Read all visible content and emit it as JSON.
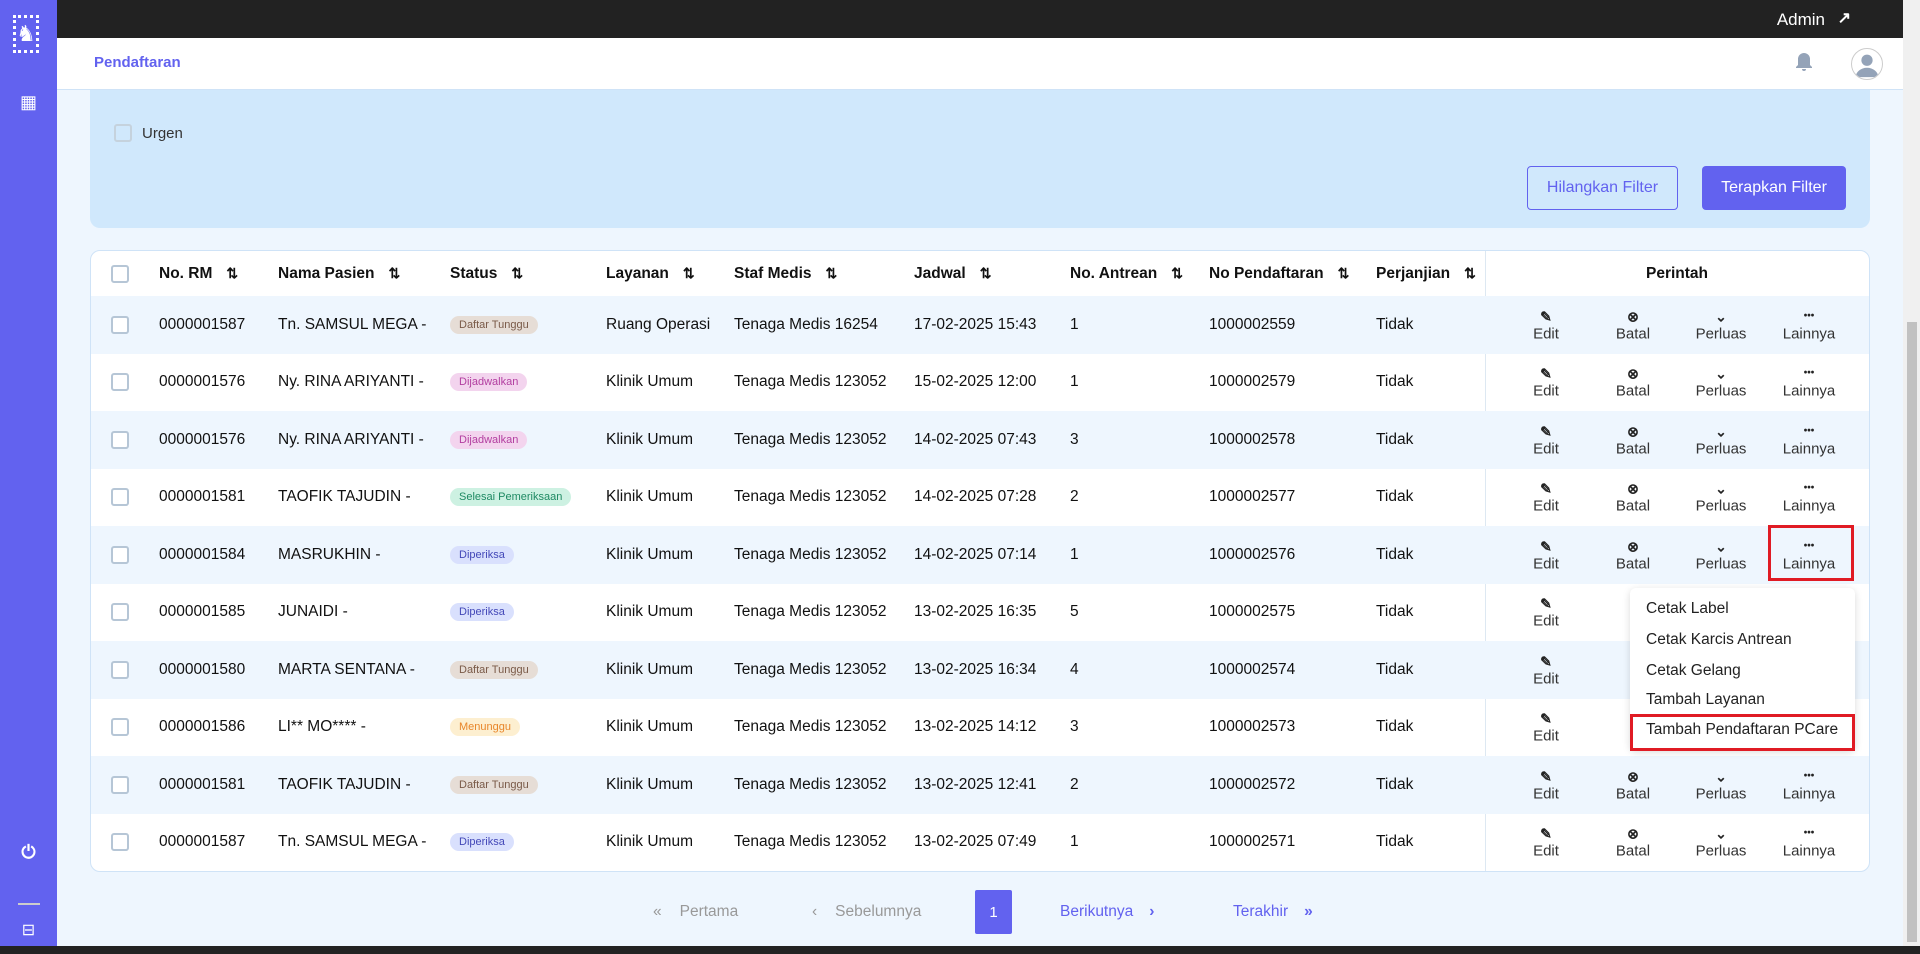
{
  "topbar": {
    "user": "Admin"
  },
  "header": {
    "title": "Pendaftaran"
  },
  "filter": {
    "urgent_label": "Urgen",
    "clear_label": "Hilangkan Filter",
    "apply_label": "Terapkan Filter"
  },
  "table": {
    "columns": [
      "No. RM",
      "Nama Pasien",
      "Status",
      "Layanan",
      "Staf Medis",
      "Jadwal",
      "No. Antrean",
      "No Pendaftaran",
      "Perjanjian"
    ],
    "actions_header": "Perintah",
    "actions": [
      "Edit",
      "Batal",
      "Perluas",
      "Lainnya"
    ],
    "rows": [
      {
        "rm": "0000001587",
        "name": "Tn. SAMSUL MEGA -",
        "status": "Daftar Tunggu",
        "layanan": "Ruang Operasi",
        "staf": "Tenaga Medis 16254",
        "jadwal": "17-02-2025 15:43",
        "antrean": "1",
        "nopend": "1000002559",
        "perjanjian": "Tidak"
      },
      {
        "rm": "0000001576",
        "name": "Ny. RINA ARIYANTI -",
        "status": "Dijadwalkan",
        "layanan": "Klinik Umum",
        "staf": "Tenaga Medis 123052",
        "jadwal": "15-02-2025 12:00",
        "antrean": "1",
        "nopend": "1000002579",
        "perjanjian": "Tidak"
      },
      {
        "rm": "0000001576",
        "name": "Ny. RINA ARIYANTI -",
        "status": "Dijadwalkan",
        "layanan": "Klinik Umum",
        "staf": "Tenaga Medis 123052",
        "jadwal": "14-02-2025 07:43",
        "antrean": "3",
        "nopend": "1000002578",
        "perjanjian": "Tidak"
      },
      {
        "rm": "0000001581",
        "name": "TAOFIK TAJUDIN -",
        "status": "Selesai Pemeriksaan",
        "layanan": "Klinik Umum",
        "staf": "Tenaga Medis 123052",
        "jadwal": "14-02-2025 07:28",
        "antrean": "2",
        "nopend": "1000002577",
        "perjanjian": "Tidak"
      },
      {
        "rm": "0000001584",
        "name": "MASRUKHIN -",
        "status": "Diperiksa",
        "layanan": "Klinik Umum",
        "staf": "Tenaga Medis 123052",
        "jadwal": "14-02-2025 07:14",
        "antrean": "1",
        "nopend": "1000002576",
        "perjanjian": "Tidak"
      },
      {
        "rm": "0000001585",
        "name": "JUNAIDI -",
        "status": "Diperiksa",
        "layanan": "Klinik Umum",
        "staf": "Tenaga Medis 123052",
        "jadwal": "13-02-2025 16:35",
        "antrean": "5",
        "nopend": "1000002575",
        "perjanjian": "Tidak"
      },
      {
        "rm": "0000001580",
        "name": "MARTA SENTANA -",
        "status": "Daftar Tunggu",
        "layanan": "Klinik Umum",
        "staf": "Tenaga Medis 123052",
        "jadwal": "13-02-2025 16:34",
        "antrean": "4",
        "nopend": "1000002574",
        "perjanjian": "Tidak"
      },
      {
        "rm": "0000001586",
        "name": "LI** MO**** -",
        "status": "Menunggu",
        "layanan": "Klinik Umum",
        "staf": "Tenaga Medis 123052",
        "jadwal": "13-02-2025 14:12",
        "antrean": "3",
        "nopend": "1000002573",
        "perjanjian": "Tidak"
      },
      {
        "rm": "0000001581",
        "name": "TAOFIK TAJUDIN -",
        "status": "Daftar Tunggu",
        "layanan": "Klinik Umum",
        "staf": "Tenaga Medis 123052",
        "jadwal": "13-02-2025 12:41",
        "antrean": "2",
        "nopend": "1000002572",
        "perjanjian": "Tidak"
      },
      {
        "rm": "0000001587",
        "name": "Tn. SAMSUL MEGA -",
        "status": "Diperiksa",
        "layanan": "Klinik Umum",
        "staf": "Tenaga Medis 123052",
        "jadwal": "13-02-2025 07:49",
        "antrean": "1",
        "nopend": "1000002571",
        "perjanjian": "Tidak"
      }
    ]
  },
  "status_colors": {
    "Daftar Tunggu": {
      "bg": "#e6ddd6",
      "fg": "#7a5a48"
    },
    "Dijadwalkan": {
      "bg": "#f3d4ee",
      "fg": "#b23ea0"
    },
    "Selesai Pemeriksaan": {
      "bg": "#cdf1e2",
      "fg": "#1f8a63"
    },
    "Diperiksa": {
      "bg": "#d9e0fd",
      "fg": "#4348b8"
    },
    "Menunggu": {
      "bg": "#fdefd0",
      "fg": "#e8862a"
    }
  },
  "dropdown": {
    "items": [
      "Cetak Label",
      "Cetak Karcis Antrean",
      "Cetak Gelang",
      "Tambah Layanan",
      "Tambah Pendaftaran PCare"
    ]
  },
  "pagination": {
    "first": "Pertama",
    "prev": "Sebelumnya",
    "current": "1",
    "next": "Berikutnya",
    "last": "Terakhir"
  }
}
